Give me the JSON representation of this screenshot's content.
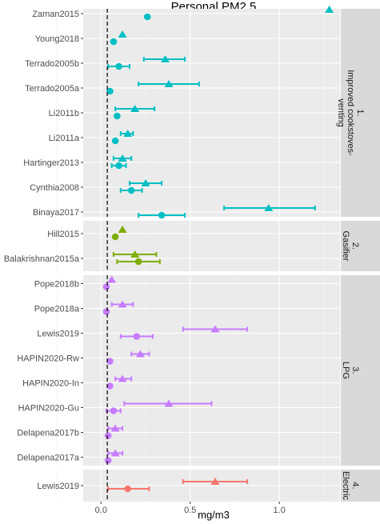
{
  "chart_data": {
    "type": "scatter",
    "title": "Personal PM2.5",
    "xlabel": "mg/m3",
    "ylabel": "",
    "xlim": [
      -0.1,
      1.34
    ],
    "x_ticks": [
      "0.0",
      "0.5",
      "1.0"
    ],
    "x_tick_values": [
      0.0,
      0.5,
      1.0
    ],
    "reference_line_x": 0.035,
    "grid": true,
    "colors": {
      "improved": "#00BFC4",
      "gasifier": "#7CAE00",
      "lpg": "#C77CFF",
      "electric": "#F8766D",
      "panel_bg": "#EBEBEB",
      "grid_major": "#FFFFFF",
      "strip_bg": "#D9D9D9"
    },
    "panels": [
      {
        "strip": "1. Improved cookstoves-venting",
        "strip_lines": [
          "1.",
          "Improved cookstoves-",
          "venting"
        ],
        "color_key": "improved",
        "studies": [
          {
            "label": "Zaman2015",
            "triangle": 1.28,
            "circle": 0.26,
            "tri_ci": null,
            "circ_ci": null
          },
          {
            "label": "Young2018",
            "triangle": 0.12,
            "circle": 0.07,
            "tri_ci": null,
            "circ_ci": null
          },
          {
            "label": "Terrado2005b",
            "triangle": 0.36,
            "circle": 0.1,
            "tri_ci": [
              0.24,
              0.47
            ],
            "circ_ci": [
              0.04,
              0.16
            ]
          },
          {
            "label": "Terrado2005a",
            "triangle": 0.38,
            "circle": 0.05,
            "tri_ci": [
              0.21,
              0.55
            ],
            "circ_ci": null
          },
          {
            "label": "Li2011b",
            "triangle": 0.19,
            "circle": 0.09,
            "tri_ci": [
              0.08,
              0.3
            ],
            "circ_ci": null
          },
          {
            "label": "Li2011a",
            "triangle": 0.15,
            "circle": 0.08,
            "tri_ci": [
              0.11,
              0.18
            ],
            "circ_ci": null
          },
          {
            "label": "Hartinger2013",
            "triangle": 0.12,
            "circle": 0.1,
            "tri_ci": [
              0.07,
              0.17
            ],
            "circ_ci": [
              0.06,
              0.14
            ]
          },
          {
            "label": "Cynthia2008",
            "triangle": 0.25,
            "circle": 0.17,
            "tri_ci": [
              0.16,
              0.34
            ],
            "circ_ci": [
              0.11,
              0.23
            ]
          },
          {
            "label": "Binaya2017",
            "triangle": 0.94,
            "circle": 0.34,
            "tri_ci": [
              0.69,
              1.2
            ],
            "circ_ci": [
              0.21,
              0.47
            ]
          }
        ]
      },
      {
        "strip": "2. Gasifier",
        "strip_lines": [
          "2.",
          "Gasifier"
        ],
        "color_key": "gasifier",
        "studies": [
          {
            "label": "Hill2015",
            "triangle": 0.12,
            "circle": 0.08,
            "tri_ci": null,
            "circ_ci": null
          },
          {
            "label": "Balakrishnan2015a",
            "triangle": 0.19,
            "circle": 0.21,
            "tri_ci": [
              0.07,
              0.31
            ],
            "circ_ci": [
              0.09,
              0.33
            ]
          }
        ]
      },
      {
        "strip": "3. LPG",
        "strip_lines": [
          "3.",
          "LPG"
        ],
        "color_key": "lpg",
        "studies": [
          {
            "label": "Pope2018b",
            "triangle": 0.06,
            "circle": 0.03,
            "tri_ci": null,
            "circ_ci": null
          },
          {
            "label": "Pope2018a",
            "triangle": 0.12,
            "circle": 0.03,
            "tri_ci": [
              0.06,
              0.18
            ],
            "circ_ci": null
          },
          {
            "label": "Lewis2019",
            "triangle": 0.64,
            "circle": 0.2,
            "tri_ci": [
              0.46,
              0.82
            ],
            "circ_ci": [
              0.11,
              0.29
            ]
          },
          {
            "label": "HAPIN2020-Rw",
            "triangle": 0.22,
            "circle": 0.05,
            "tri_ci": [
              0.17,
              0.27
            ],
            "circ_ci": null
          },
          {
            "label": "HAPIN2020-In",
            "triangle": 0.12,
            "circle": 0.05,
            "tri_ci": [
              0.08,
              0.17
            ],
            "circ_ci": null
          },
          {
            "label": "HAPIN2020-Gu",
            "triangle": 0.38,
            "circle": 0.07,
            "tri_ci": [
              0.13,
              0.62
            ],
            "circ_ci": [
              0.03,
              0.11
            ]
          },
          {
            "label": "Delapena2017b",
            "triangle": 0.08,
            "circle": 0.04,
            "tri_ci": [
              0.04,
              0.12
            ],
            "circ_ci": null
          },
          {
            "label": "Delapena2017a",
            "triangle": 0.08,
            "circle": 0.04,
            "tri_ci": [
              0.04,
              0.12
            ],
            "circ_ci": null
          }
        ]
      },
      {
        "strip": "4. Electric",
        "strip_lines": [
          "4.",
          "Electric"
        ],
        "color_key": "electric",
        "studies": [
          {
            "label": "Lewis2019",
            "triangle": 0.64,
            "circle": 0.15,
            "tri_ci": [
              0.46,
              0.82
            ],
            "circ_ci": [
              0.04,
              0.27
            ]
          }
        ]
      }
    ]
  }
}
